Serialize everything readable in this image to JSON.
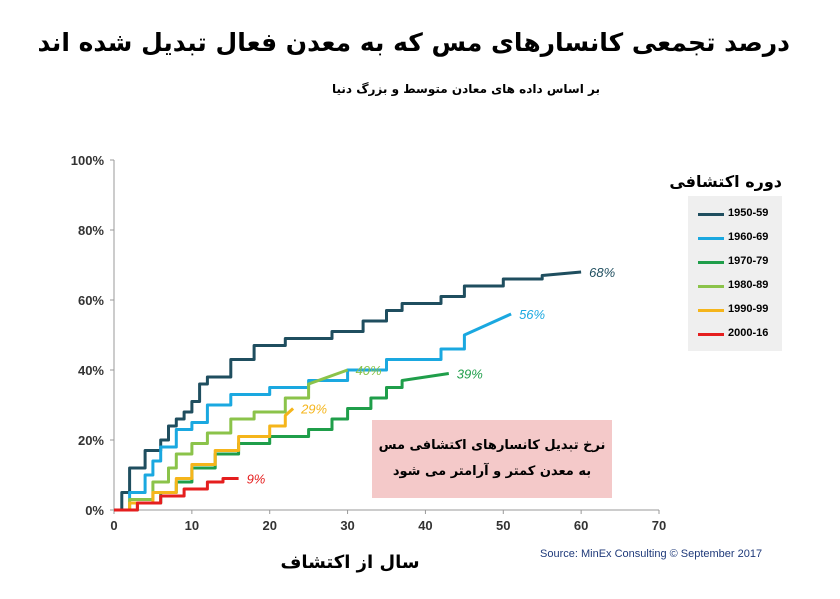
{
  "chart_data": {
    "type": "line",
    "title": "درصد تجمعی کانسارهای مس که به معدن فعال تبدیل شده اند",
    "subtitle": "بر اساس داده های معادن متوسط و بزرگ دنیا",
    "xlabel": "سال از اکتشاف",
    "ylabel": "",
    "xlim": [
      0,
      70
    ],
    "ylim": [
      0,
      100
    ],
    "x_ticks": [
      "0",
      "10",
      "20",
      "30",
      "40",
      "50",
      "60",
      "70"
    ],
    "y_ticks": [
      "0%",
      "20%",
      "40%",
      "60%",
      "80%",
      "100%"
    ],
    "grid": false,
    "legend_title": "دوره اکتشافی",
    "legend_position": "right",
    "series": [
      {
        "name": "1950-59",
        "color": "#1f4e5f",
        "end_label": "68%",
        "x": [
          0,
          1,
          1,
          2,
          2,
          4,
          4,
          6,
          6,
          7,
          7,
          8,
          8,
          9,
          9,
          10,
          10,
          11,
          11,
          12,
          12,
          15,
          15,
          18,
          18,
          22,
          22,
          28,
          28,
          32,
          32,
          35,
          35,
          37,
          37,
          42,
          42,
          45,
          45,
          50,
          50,
          55,
          55,
          60
        ],
        "y": [
          0,
          0,
          5,
          5,
          12,
          12,
          17,
          17,
          20,
          20,
          24,
          24,
          26,
          26,
          28,
          28,
          31,
          31,
          36,
          36,
          38,
          38,
          43,
          43,
          47,
          47,
          49,
          49,
          51,
          51,
          54,
          54,
          57,
          57,
          59,
          59,
          61,
          61,
          64,
          64,
          66,
          66,
          67,
          68
        ]
      },
      {
        "name": "1960-69",
        "color": "#1aa8e0",
        "end_label": "56%",
        "x": [
          0,
          2,
          2,
          4,
          4,
          5,
          5,
          6,
          6,
          8,
          8,
          10,
          10,
          12,
          12,
          15,
          15,
          20,
          20,
          25,
          25,
          30,
          30,
          35,
          35,
          42,
          42,
          45,
          45,
          51
        ],
        "y": [
          0,
          0,
          5,
          5,
          10,
          10,
          14,
          14,
          18,
          18,
          23,
          23,
          25,
          25,
          30,
          30,
          33,
          33,
          35,
          35,
          37,
          37,
          40,
          40,
          43,
          43,
          46,
          46,
          50,
          56
        ]
      },
      {
        "name": "1970-79",
        "color": "#1f9e4a",
        "end_label": "39%",
        "x": [
          0,
          3,
          3,
          6,
          6,
          8,
          8,
          10,
          10,
          13,
          13,
          16,
          16,
          20,
          20,
          25,
          25,
          28,
          28,
          30,
          30,
          33,
          33,
          35,
          35,
          37,
          37,
          43
        ],
        "y": [
          0,
          0,
          2,
          2,
          5,
          5,
          8,
          8,
          12,
          12,
          16,
          16,
          19,
          19,
          21,
          21,
          23,
          23,
          26,
          26,
          29,
          29,
          32,
          32,
          35,
          35,
          37,
          39
        ]
      },
      {
        "name": "1980-89",
        "color": "#8bc34a",
        "end_label": "40%",
        "x": [
          0,
          2,
          2,
          5,
          5,
          7,
          7,
          8,
          8,
          10,
          10,
          12,
          12,
          15,
          15,
          18,
          18,
          22,
          22,
          25,
          25,
          30
        ],
        "y": [
          0,
          0,
          3,
          3,
          8,
          8,
          12,
          12,
          16,
          16,
          19,
          19,
          22,
          22,
          26,
          26,
          28,
          28,
          32,
          32,
          36,
          40
        ]
      },
      {
        "name": "1990-99",
        "color": "#f5b51b",
        "end_label": "29%",
        "x": [
          0,
          2,
          2,
          5,
          5,
          8,
          8,
          10,
          10,
          13,
          13,
          16,
          16,
          20,
          20,
          22,
          22,
          23
        ],
        "y": [
          0,
          0,
          2,
          2,
          5,
          5,
          9,
          9,
          13,
          13,
          17,
          17,
          21,
          21,
          24,
          24,
          27,
          29
        ]
      },
      {
        "name": "2000-16",
        "color": "#e51e1e",
        "end_label": "9%",
        "x": [
          0,
          3,
          3,
          6,
          6,
          9,
          9,
          12,
          12,
          14,
          14,
          16
        ],
        "y": [
          0,
          0,
          2,
          2,
          4,
          4,
          6,
          6,
          8,
          8,
          9,
          9
        ]
      }
    ],
    "annotation": {
      "line1": "نرخ تبدیل کانسارهای اکتشافی مس",
      "line2": "به معدن کمتر و آرامتر می شود"
    },
    "source": "Source: MinEx Consulting ©  September 2017"
  }
}
